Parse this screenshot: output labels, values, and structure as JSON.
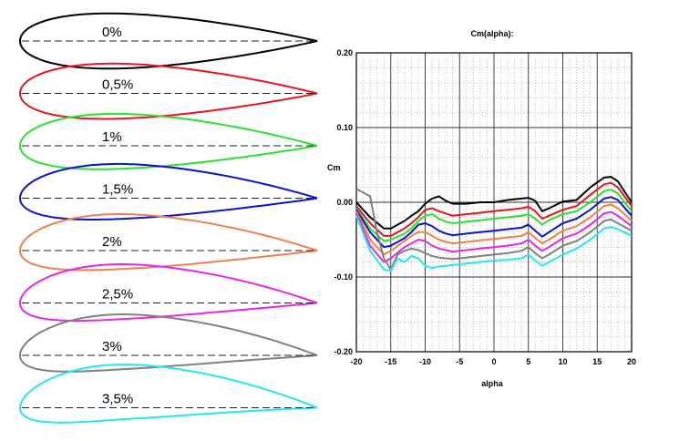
{
  "profiles": [
    {
      "label": "0%",
      "color": "#000000",
      "camber": 0.0
    },
    {
      "label": "0,5%",
      "color": "#e8141e",
      "camber": 0.5
    },
    {
      "label": "1%",
      "color": "#2ee02e",
      "camber": 1.0
    },
    {
      "label": "1,5%",
      "color": "#0a14c8",
      "camber": 1.5
    },
    {
      "label": "2%",
      "color": "#f0804a",
      "camber": 2.0
    },
    {
      "label": "2,5%",
      "color": "#e628e6",
      "camber": 2.5
    },
    {
      "label": "3%",
      "color": "#808080",
      "camber": 3.0
    },
    {
      "label": "3,5%",
      "color": "#28e6f0",
      "camber": 3.5
    }
  ],
  "chart_data": {
    "type": "line",
    "title": "Cm(alpha):",
    "xlabel": "alpha",
    "ylabel": "Cm",
    "xlim": [
      -20,
      20
    ],
    "ylim": [
      -0.2,
      0.2
    ],
    "xticks": [
      "-20",
      "-15",
      "-10",
      "-5",
      "0",
      "5",
      "10",
      "15",
      "20"
    ],
    "yticks": [
      "0.20",
      "0.10",
      "0.00",
      "-0.10",
      "-0.20"
    ],
    "grid": true,
    "series": [
      {
        "color": "#000000",
        "x": [
          -20,
          -18,
          -16,
          -15,
          -13,
          -12,
          -11,
          -10,
          -9,
          -8,
          -7,
          -6,
          -4,
          -2,
          0,
          2,
          4,
          5,
          6,
          7,
          8,
          10,
          12,
          14,
          16,
          17,
          18,
          20
        ],
        "y": [
          0.0,
          -0.02,
          -0.035,
          -0.035,
          -0.025,
          -0.018,
          -0.012,
          -0.002,
          0.005,
          0.008,
          0.002,
          -0.002,
          -0.002,
          0.0,
          0.0,
          0.003,
          0.005,
          0.006,
          0.002,
          -0.012,
          -0.008,
          0.001,
          0.003,
          0.02,
          0.033,
          0.034,
          0.028,
          0.0
        ]
      },
      {
        "color": "#e8141e",
        "x": [
          -20,
          -18,
          -16,
          -15,
          -13,
          -12,
          -11,
          -10,
          -9,
          -8,
          -7,
          -6,
          -4,
          -2,
          0,
          2,
          4,
          5,
          6,
          7,
          8,
          10,
          12,
          14,
          16,
          17,
          18,
          20
        ],
        "y": [
          -0.005,
          -0.028,
          -0.045,
          -0.045,
          -0.035,
          -0.028,
          -0.02,
          -0.01,
          -0.008,
          -0.012,
          -0.015,
          -0.018,
          -0.016,
          -0.014,
          -0.012,
          -0.01,
          -0.008,
          -0.006,
          -0.012,
          -0.022,
          -0.018,
          -0.01,
          -0.005,
          0.01,
          0.024,
          0.026,
          0.02,
          -0.005
        ]
      },
      {
        "color": "#2ee02e",
        "x": [
          -20,
          -18,
          -16,
          -15,
          -13,
          -12,
          -11,
          -10,
          -9,
          -8,
          -7,
          -6,
          -4,
          -2,
          0,
          2,
          4,
          5,
          6,
          7,
          8,
          10,
          12,
          14,
          16,
          17,
          18,
          20
        ],
        "y": [
          -0.008,
          -0.035,
          -0.052,
          -0.05,
          -0.042,
          -0.035,
          -0.025,
          -0.018,
          -0.016,
          -0.022,
          -0.026,
          -0.028,
          -0.026,
          -0.024,
          -0.022,
          -0.02,
          -0.018,
          -0.016,
          -0.022,
          -0.03,
          -0.024,
          -0.016,
          -0.012,
          0.0,
          0.015,
          0.017,
          0.012,
          -0.012
        ]
      },
      {
        "color": "#0a14c8",
        "x": [
          -20,
          -18,
          -16,
          -15,
          -13,
          -12,
          -11,
          -10,
          -9,
          -8,
          -7,
          -6,
          -4,
          -2,
          0,
          2,
          4,
          5,
          6,
          7,
          8,
          10,
          12,
          14,
          16,
          17,
          18,
          20
        ],
        "y": [
          -0.01,
          -0.04,
          -0.06,
          -0.058,
          -0.048,
          -0.04,
          -0.03,
          -0.028,
          -0.032,
          -0.038,
          -0.042,
          -0.044,
          -0.042,
          -0.04,
          -0.038,
          -0.036,
          -0.034,
          -0.03,
          -0.038,
          -0.046,
          -0.04,
          -0.028,
          -0.022,
          -0.01,
          0.005,
          0.007,
          0.003,
          -0.018
        ]
      },
      {
        "color": "#f0804a",
        "x": [
          -20,
          -18,
          -16,
          -15,
          -13,
          -12,
          -11,
          -10,
          -9,
          -8,
          -7,
          -6,
          -4,
          -2,
          0,
          2,
          4,
          5,
          6,
          7,
          8,
          10,
          12,
          14,
          16,
          17,
          18,
          20
        ],
        "y": [
          -0.012,
          -0.05,
          -0.07,
          -0.065,
          -0.052,
          -0.045,
          -0.04,
          -0.04,
          -0.045,
          -0.05,
          -0.053,
          -0.055,
          -0.053,
          -0.051,
          -0.049,
          -0.047,
          -0.045,
          -0.04,
          -0.048,
          -0.055,
          -0.05,
          -0.038,
          -0.032,
          -0.02,
          -0.005,
          -0.003,
          -0.008,
          -0.025
        ]
      },
      {
        "color": "#e628e6",
        "x": [
          -20,
          -18,
          -16,
          -15,
          -13,
          -12,
          -11,
          -10,
          -9,
          -8,
          -7,
          -6,
          -4,
          -2,
          0,
          2,
          4,
          5,
          6,
          7,
          8,
          10,
          12,
          14,
          16,
          17,
          18,
          20
        ],
        "y": [
          -0.015,
          -0.058,
          -0.08,
          -0.075,
          -0.06,
          -0.055,
          -0.05,
          -0.052,
          -0.058,
          -0.062,
          -0.064,
          -0.066,
          -0.064,
          -0.062,
          -0.06,
          -0.058,
          -0.055,
          -0.05,
          -0.058,
          -0.065,
          -0.06,
          -0.048,
          -0.042,
          -0.03,
          -0.015,
          -0.013,
          -0.018,
          -0.032
        ]
      },
      {
        "color": "#808080",
        "x": [
          -20,
          -18,
          -17,
          -16,
          -15,
          -14,
          -13,
          -12,
          -11,
          -10,
          -9,
          -8,
          -7,
          -6,
          -4,
          -2,
          0,
          2,
          4,
          5,
          6,
          7,
          8,
          10,
          12,
          14,
          16,
          17,
          18,
          20
        ],
        "y": [
          0.018,
          0.008,
          -0.04,
          -0.075,
          -0.09,
          -0.07,
          -0.065,
          -0.062,
          -0.064,
          -0.068,
          -0.072,
          -0.074,
          -0.075,
          -0.076,
          -0.074,
          -0.072,
          -0.07,
          -0.068,
          -0.065,
          -0.06,
          -0.068,
          -0.075,
          -0.07,
          -0.058,
          -0.052,
          -0.04,
          -0.025,
          -0.023,
          -0.028,
          -0.038
        ]
      },
      {
        "color": "#28e6f0",
        "x": [
          -20,
          -18,
          -16,
          -15,
          -14,
          -13,
          -12,
          -11,
          -10,
          -9,
          -8,
          -7,
          -6,
          -4,
          -2,
          0,
          2,
          4,
          5,
          6,
          7,
          8,
          10,
          12,
          14,
          16,
          17,
          18,
          20
        ],
        "y": [
          -0.018,
          -0.065,
          -0.09,
          -0.092,
          -0.075,
          -0.08,
          -0.072,
          -0.075,
          -0.085,
          -0.088,
          -0.086,
          -0.085,
          -0.084,
          -0.082,
          -0.08,
          -0.078,
          -0.077,
          -0.075,
          -0.07,
          -0.078,
          -0.085,
          -0.08,
          -0.07,
          -0.062,
          -0.05,
          -0.035,
          -0.033,
          -0.036,
          -0.045
        ]
      }
    ]
  }
}
